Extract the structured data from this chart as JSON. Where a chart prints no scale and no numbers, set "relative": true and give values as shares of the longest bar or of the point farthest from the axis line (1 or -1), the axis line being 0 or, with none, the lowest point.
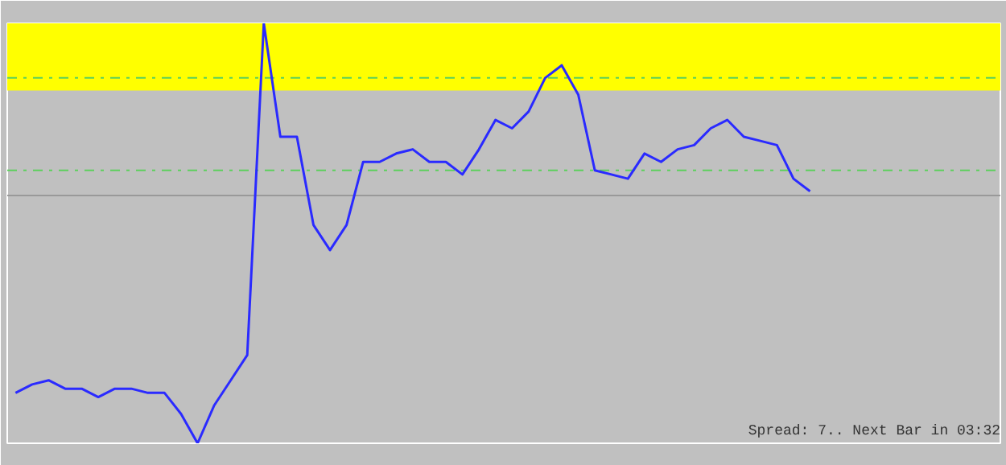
{
  "chart_data": {
    "type": "line",
    "relative": true,
    "categories": [
      null,
      null,
      null,
      null,
      null,
      null,
      null,
      null,
      null,
      null,
      null,
      null,
      null,
      null,
      null,
      null,
      null,
      null,
      null,
      null,
      null,
      null,
      null,
      null,
      null,
      null,
      null,
      null,
      null,
      null,
      null,
      null,
      null,
      null,
      null,
      null,
      null,
      null,
      null,
      null,
      null,
      null,
      null,
      null,
      null,
      null,
      null,
      null,
      null,
      null,
      null,
      null,
      null,
      null,
      null,
      null,
      null,
      null,
      null,
      null
    ],
    "series": [
      {
        "color": "#2a2aff",
        "values": [
          0.12,
          0.14,
          0.15,
          0.13,
          0.13,
          0.11,
          0.13,
          0.13,
          0.12,
          0.12,
          0.07,
          0,
          0.09,
          0.15,
          0.21,
          1.0,
          0.73,
          0.73,
          0.52,
          0.46,
          0.52,
          0.67,
          0.67,
          0.69,
          0.7,
          0.67,
          0.67,
          0.64,
          0.7,
          0.77,
          0.75,
          0.79,
          0.87,
          0.9,
          0.83,
          0.65,
          0.64,
          0.63,
          0.69,
          0.67,
          0.7,
          0.71,
          0.75,
          0.77,
          0.73,
          0.72,
          0.71,
          0.63,
          0.6,
          null,
          null,
          null,
          null,
          null,
          null,
          null,
          null,
          null,
          null,
          null
        ]
      }
    ],
    "ref_lines": [
      {
        "axis": "y",
        "value": 0.87,
        "color": "#5ccf5c",
        "line_style": "dashed"
      },
      {
        "axis": "y",
        "value": 0.65,
        "color": "#5ccf5c",
        "line_style": "dashed"
      },
      {
        "axis": "y",
        "value": 0.59,
        "color": "#999999",
        "line_style": "solid"
      }
    ],
    "bands": [
      {
        "axis": "y",
        "from": 0.84,
        "to": 1.0,
        "color": "#ffff00"
      }
    ],
    "annotations": [
      "Spread: 7.. Next Bar in 03:32"
    ],
    "grid": false,
    "line_style": "solid",
    "marker": "none"
  }
}
